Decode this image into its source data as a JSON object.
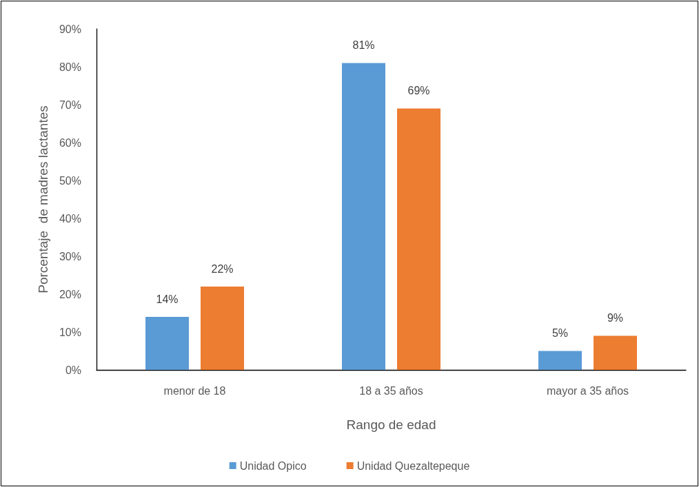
{
  "chart_data": {
    "type": "bar",
    "xlabel": "Rango de edad",
    "ylabel": "Porcentaje  de madres lactantes",
    "categories": [
      "menor de 18",
      "18 a 35 años",
      "mayor a 35 años"
    ],
    "series": [
      {
        "name": "Unidad Opico",
        "color": "#5b9bd5",
        "values": [
          14,
          81,
          5
        ],
        "value_labels": [
          "14%",
          "81%",
          "5%"
        ]
      },
      {
        "name": "Unidad Quezaltepeque",
        "color": "#ed7d31",
        "values": [
          22,
          69,
          9
        ],
        "value_labels": [
          "22%",
          "69%",
          "9%"
        ]
      }
    ],
    "ylim": [
      0,
      90
    ],
    "yticks": [
      {
        "value": 0,
        "label": "0%"
      },
      {
        "value": 10,
        "label": "10%"
      },
      {
        "value": 20,
        "label": "20%"
      },
      {
        "value": 30,
        "label": "30%"
      },
      {
        "value": 40,
        "label": "40%"
      },
      {
        "value": 50,
        "label": "50%"
      },
      {
        "value": 60,
        "label": "60%"
      },
      {
        "value": 70,
        "label": "70%"
      },
      {
        "value": 80,
        "label": "80%"
      },
      {
        "value": 90,
        "label": "90%"
      }
    ],
    "grid": false,
    "legend": "bottom"
  }
}
